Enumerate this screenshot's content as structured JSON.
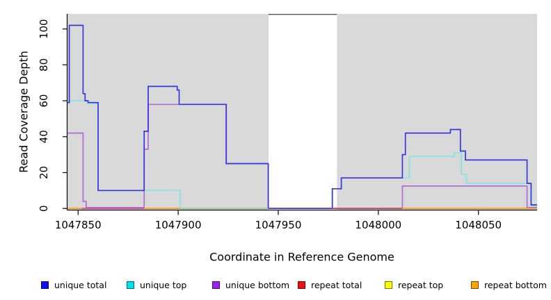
{
  "chart_data": {
    "type": "line",
    "subtype": "step-after",
    "title": "",
    "xlabel": "Coordinate in Reference Genome",
    "ylabel": "Read Coverage Depth",
    "x_range": [
      1047844.7,
      1048079.3
    ],
    "y_range": [
      -0.7,
      108.4
    ],
    "x_ticks": [
      1047850,
      1047900,
      1047950,
      1048000,
      1048050
    ],
    "y_ticks": [
      0,
      20,
      40,
      60,
      80,
      100
    ],
    "grid": false,
    "plot_bg": "#d9d9d9",
    "masked_region": {
      "from": 1047945.15,
      "to": 1047979.3,
      "fill": "#ffffff",
      "top_border": "#555555"
    },
    "series": [
      {
        "name": "repeat bottom",
        "color": "#FFA317",
        "points": [
          [
            1047844.7,
            0
          ]
        ]
      },
      {
        "name": "repeat top",
        "color": "#F2F23D",
        "points": [
          [
            1047844.7,
            0
          ]
        ]
      },
      {
        "name": "repeat total",
        "color": "#DE2B2B",
        "points": [
          [
            1047844.7,
            0
          ]
        ]
      },
      {
        "name": "unique bottom",
        "color": "#B26AD6",
        "points": [
          [
            1047844.7,
            42
          ],
          [
            1047852.5,
            4
          ],
          [
            1047854,
            0.5
          ],
          [
            1047883,
            33
          ],
          [
            1047885,
            58
          ],
          [
            1047924,
            25
          ],
          [
            1047945,
            0
          ],
          [
            1048012,
            12.5
          ],
          [
            1048074.3,
            0.5
          ]
        ]
      },
      {
        "name": "unique top",
        "color": "#82E3E8",
        "points": [
          [
            1047844.7,
            60
          ],
          [
            1047855,
            58.5
          ],
          [
            1047860,
            10
          ],
          [
            1047901,
            0
          ],
          [
            1047977,
            11
          ],
          [
            1047981.5,
            17
          ],
          [
            1048015.5,
            29
          ],
          [
            1048038,
            31
          ],
          [
            1048041.5,
            19
          ],
          [
            1048044,
            14
          ],
          [
            1048076.3,
            1.5
          ]
        ]
      },
      {
        "name": "unique total",
        "color": "#3636DE",
        "points": [
          [
            1047844.7,
            59
          ],
          [
            1047845.6,
            102
          ],
          [
            1047852.5,
            64
          ],
          [
            1047853.5,
            60
          ],
          [
            1047855,
            59
          ],
          [
            1047860,
            10
          ],
          [
            1047883,
            43
          ],
          [
            1047885,
            68
          ],
          [
            1047899.5,
            66
          ],
          [
            1047900.5,
            58
          ],
          [
            1047924,
            25
          ],
          [
            1047945,
            0
          ],
          [
            1047977,
            11
          ],
          [
            1047981.5,
            17
          ],
          [
            1048012,
            30
          ],
          [
            1048013.5,
            42
          ],
          [
            1048036,
            44
          ],
          [
            1048041,
            32
          ],
          [
            1048043.5,
            27
          ],
          [
            1048074.3,
            14
          ],
          [
            1048076.3,
            2
          ]
        ]
      }
    ],
    "zero_line_segments": [
      {
        "from": 1047844.7,
        "to": 1047852,
        "color": "#FFA317"
      },
      {
        "from": 1047852,
        "to": 1047883,
        "color": "#CE4E96"
      },
      {
        "from": 1047883,
        "to": 1047901,
        "color": "#FFA317"
      },
      {
        "from": 1047901,
        "to": 1047945,
        "color": "#9CCD9C"
      },
      {
        "from": 1047945,
        "to": 1047977,
        "color": "#4B33D9"
      },
      {
        "from": 1047977,
        "to": 1048012,
        "color": "#C54064"
      },
      {
        "from": 1048012,
        "to": 1048079.3,
        "color": "#FFA317"
      }
    ],
    "legend": [
      {
        "label": "unique total",
        "color": "#1010EE"
      },
      {
        "label": "unique top",
        "color": "#00E3EE"
      },
      {
        "label": "unique bottom",
        "color": "#A020F0"
      },
      {
        "label": "repeat total",
        "color": "#EE1111"
      },
      {
        "label": "repeat top",
        "color": "#FFFF00"
      },
      {
        "label": "repeat bottom",
        "color": "#FFA500"
      }
    ],
    "legend_position": "bottom"
  }
}
